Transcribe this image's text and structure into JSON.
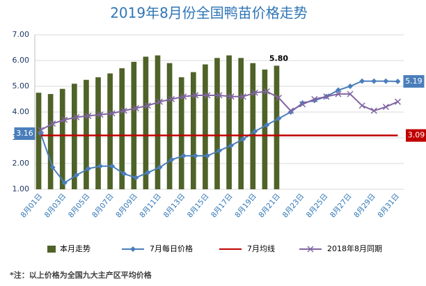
{
  "chart_data": {
    "type": "combo",
    "title": "2019年8月份全国鸭苗价格走势",
    "categories": [
      "8月01日",
      null,
      "8月03日",
      null,
      "8月05日",
      null,
      "8月07日",
      null,
      "8月09日",
      null,
      "8月11日",
      null,
      "8月13日",
      null,
      "8月15日",
      null,
      "8月17日",
      null,
      "8月19日",
      null,
      "8月21日",
      null,
      "8月23日",
      null,
      "8月25日",
      null,
      "8月27日",
      null,
      "8月29日",
      null,
      "8月31日"
    ],
    "ylim": [
      1,
      7
    ],
    "yticks": [
      {
        "value": 1,
        "label": "1.00"
      },
      {
        "value": 2,
        "label": "2.00"
      },
      {
        "value": 3,
        "label": "3.00"
      },
      {
        "value": 4,
        "label": "4.00"
      },
      {
        "value": 5,
        "label": "5.00"
      },
      {
        "value": 6,
        "label": "6.00"
      },
      {
        "value": 7,
        "label": "7.00"
      }
    ],
    "grid": true,
    "legend": "bottom",
    "series": [
      {
        "name": "本月走势",
        "type": "bar",
        "color": "#4f6228",
        "values": [
          4.75,
          4.7,
          4.9,
          5.1,
          5.25,
          5.35,
          5.5,
          5.7,
          5.95,
          6.15,
          6.2,
          5.9,
          5.35,
          5.55,
          5.85,
          6.1,
          6.2,
          6.1,
          5.9,
          5.65,
          5.8,
          null,
          null,
          null,
          null,
          null,
          null,
          null,
          null,
          null,
          null
        ],
        "value_labels": [
          null,
          null,
          null,
          null,
          null,
          null,
          null,
          null,
          null,
          null,
          null,
          null,
          null,
          null,
          null,
          null,
          null,
          null,
          null,
          null,
          "5.80",
          null,
          null,
          null,
          null,
          null,
          null,
          null,
          null,
          null,
          null
        ]
      },
      {
        "name": "7月每日价格",
        "type": "line",
        "color": "#4a7ebb",
        "marker": "diamond",
        "values": [
          3.16,
          1.85,
          1.25,
          1.55,
          1.8,
          1.9,
          1.9,
          1.6,
          1.45,
          1.65,
          1.85,
          2.15,
          2.3,
          2.3,
          2.3,
          2.5,
          2.7,
          2.95,
          3.25,
          3.5,
          3.75,
          4.0,
          4.35,
          4.45,
          4.6,
          4.85,
          5.0,
          5.2,
          5.2,
          5.2,
          5.19
        ],
        "value_labels": [
          "3.16",
          null,
          null,
          null,
          null,
          null,
          null,
          null,
          null,
          null,
          null,
          null,
          null,
          null,
          null,
          null,
          null,
          null,
          null,
          null,
          null,
          null,
          null,
          null,
          null,
          null,
          null,
          null,
          null,
          null,
          "5.19"
        ]
      },
      {
        "name": "7月均线",
        "type": "line",
        "color": "#c00000",
        "marker": "none",
        "values": [
          3.09,
          3.09,
          3.09,
          3.09,
          3.09,
          3.09,
          3.09,
          3.09,
          3.09,
          3.09,
          3.09,
          3.09,
          3.09,
          3.09,
          3.09,
          3.09,
          3.09,
          3.09,
          3.09,
          3.09,
          3.09,
          3.09,
          3.09,
          3.09,
          3.09,
          3.09,
          3.09,
          3.09,
          3.09,
          3.09,
          3.09
        ],
        "value_labels": [
          null,
          null,
          null,
          null,
          null,
          null,
          null,
          null,
          null,
          null,
          null,
          null,
          null,
          null,
          null,
          null,
          null,
          null,
          null,
          null,
          null,
          null,
          null,
          null,
          null,
          null,
          null,
          null,
          null,
          null,
          "3.09"
        ]
      },
      {
        "name": "2018年8月同期",
        "type": "line",
        "color": "#8064a2",
        "marker": "x",
        "values": [
          3.3,
          3.55,
          3.7,
          3.8,
          3.85,
          3.9,
          3.95,
          4.05,
          4.15,
          4.25,
          4.4,
          4.5,
          4.6,
          4.65,
          4.65,
          4.65,
          4.6,
          4.6,
          4.75,
          4.8,
          4.55,
          4.05,
          4.3,
          4.5,
          4.6,
          4.7,
          4.7,
          4.25,
          4.05,
          4.2,
          4.4
        ]
      }
    ],
    "footnote": "*注：以上价格为全国九大主产区平均价格"
  }
}
